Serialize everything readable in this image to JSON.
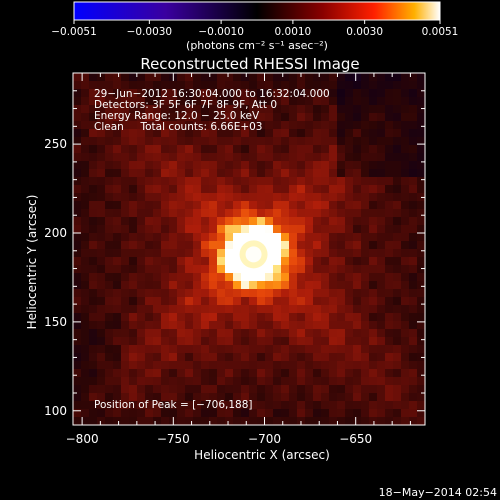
{
  "chart_data": {
    "type": "heatmap",
    "title": "Reconstructed RHESSI Image",
    "xlabel": "Heliocentric X (arcsec)",
    "ylabel": "Heliocentric Y (arcsec)",
    "xlim": [
      -805,
      -612
    ],
    "ylim": [
      92,
      290
    ],
    "xticks": [
      -800,
      -750,
      -700,
      -650
    ],
    "xtick_labels": [
      "−800",
      "−750",
      "−700",
      "−650"
    ],
    "yticks": [
      100,
      150,
      200,
      250
    ],
    "ytick_labels": [
      "100",
      "150",
      "200",
      "250"
    ],
    "colorbar": {
      "range": [
        -0.0051,
        0.0051
      ],
      "ticks": [
        -0.0051,
        -0.003,
        -0.001,
        0.001,
        0.003,
        0.0051
      ],
      "tick_labels": [
        "−0.0051",
        "−0.0030",
        "−0.0010",
        "0.0010",
        "0.0030",
        "0.0051"
      ],
      "units_label": "(photons cm⁻² s⁻¹ asec⁻²)",
      "colormap": [
        "#0000ff",
        "#3a00a0",
        "#000000",
        "#700000",
        "#ff1a00",
        "#ffa000",
        "#ffffff"
      ]
    },
    "annotations": [
      "29−Jun−2012 16:30:04.000 to 16:32:04.000",
      "Detectors: 3F 5F 6F 7F 8F 9F, Att 0",
      "Energy Range: 12.0 − 25.0 keV",
      "Clean     Total counts: 6.66E+03"
    ],
    "peak_label": "Position of Peak = [−706,188]",
    "peak": {
      "x": -706,
      "y": 188,
      "value": 0.0051
    },
    "grid": false,
    "footer_timestamp": "18−May−2014 02:54"
  }
}
